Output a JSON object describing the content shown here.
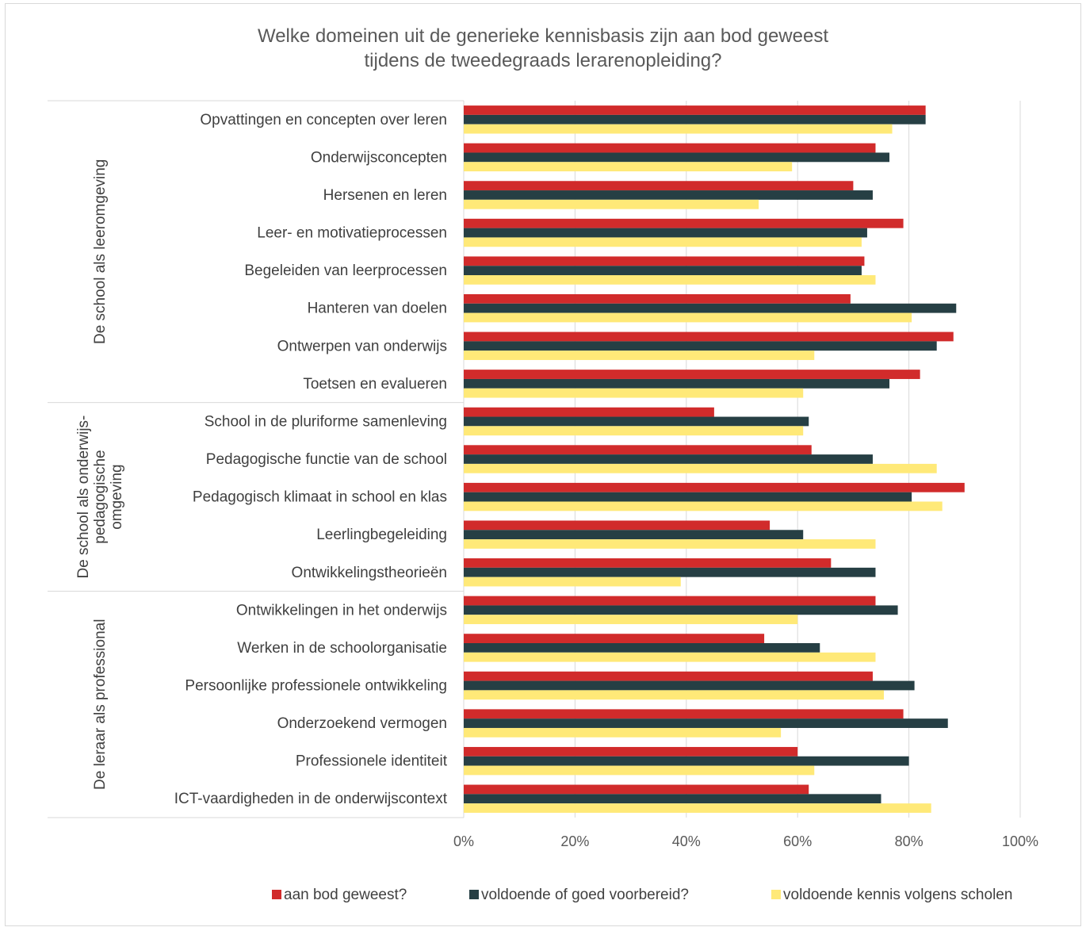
{
  "chart_data": {
    "type": "bar",
    "orientation": "horizontal",
    "title_lines": [
      "Welke domeinen uit de generieke kennisbasis zijn aan bod geweest",
      "tijdens de tweedegraads lerarenopleiding?"
    ],
    "categories": [
      "Opvattingen en concepten over leren",
      "Onderwijsconcepten",
      "Hersenen en leren",
      "Leer- en motivatieprocessen",
      "Begeleiden van leerprocessen",
      "Hanteren van doelen",
      "Ontwerpen van onderwijs",
      "Toetsen en evalueren",
      "School in de pluriforme samenleving",
      "Pedagogische functie van de school",
      "Pedagogisch klimaat in school en klas",
      "Leerlingbegeleiding",
      "Ontwikkelingstheorieën",
      "Ontwikkelingen in het onderwijs",
      "Werken in de schoolorganisatie",
      "Persoonlijke professionele ontwikkeling",
      "Onderzoekend vermogen",
      "Professionele identiteit",
      "ICT-vaardigheden in de onderwijscontext"
    ],
    "groups": [
      {
        "label_lines": [
          "De school als leeromgeving"
        ],
        "start": 0,
        "end": 7
      },
      {
        "label_lines": [
          "De school als onderwijs-",
          "pedagogische",
          "omgeving"
        ],
        "start": 8,
        "end": 12
      },
      {
        "label_lines": [
          "De leraar als professional"
        ],
        "start": 13,
        "end": 18
      }
    ],
    "series": [
      {
        "name": "aan bod geweest?",
        "color": "#d12b2b",
        "values": [
          83,
          74,
          70,
          79,
          72,
          69.5,
          88,
          82,
          45,
          62.5,
          90,
          55,
          66,
          74,
          54,
          73.5,
          79,
          60,
          62
        ]
      },
      {
        "name": "voldoende of goed voorbereid?",
        "color": "#263f44",
        "values": [
          83,
          76.5,
          73.5,
          72.5,
          71.5,
          88.5,
          85,
          76.5,
          62,
          73.5,
          80.5,
          61,
          74,
          78,
          64,
          81,
          87,
          80,
          75
        ]
      },
      {
        "name": "voldoende kennis volgens scholen",
        "color": "#ffe978",
        "values": [
          77,
          59,
          53,
          71.5,
          74,
          80.5,
          63,
          61,
          61,
          85,
          86,
          74,
          39,
          60,
          74,
          75.5,
          57,
          63,
          84
        ]
      }
    ],
    "xlim": [
      0,
      100
    ],
    "x_ticks": [
      "0%",
      "20%",
      "40%",
      "60%",
      "80%",
      "100%"
    ],
    "x_tick_values": [
      0,
      20,
      40,
      60,
      80,
      100
    ],
    "grid": true,
    "legend_position": "bottom-right"
  }
}
